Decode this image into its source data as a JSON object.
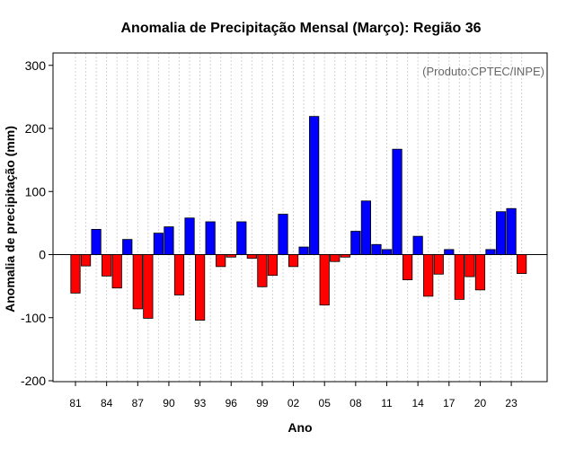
{
  "chart_data": {
    "type": "bar",
    "title": "Anomalia de Precipitação Mensal (Março): Região 36",
    "xlabel": "Ano",
    "ylabel": "Anomalia de precipitação (mm)",
    "annotation": "(Produto:CPTEC/INPE)",
    "ylim": [
      -200,
      320
    ],
    "yticks": [
      -200,
      -100,
      0,
      100,
      200,
      300
    ],
    "ytick_labels": [
      "-200",
      "-100",
      "0",
      "100",
      "200",
      "300"
    ],
    "categories": [
      "1981",
      "1982",
      "1983",
      "1984",
      "1985",
      "1986",
      "1987",
      "1988",
      "1989",
      "1990",
      "1991",
      "1992",
      "1993",
      "1994",
      "1995",
      "1996",
      "1997",
      "1998",
      "1999",
      "2000",
      "2001",
      "2002",
      "2003",
      "2004",
      "2005",
      "2006",
      "2007",
      "2008",
      "2009",
      "2010",
      "2011",
      "2012",
      "2013",
      "2014",
      "2015",
      "2016",
      "2017",
      "2018",
      "2019",
      "2020",
      "2021",
      "2022",
      "2023",
      "2024"
    ],
    "xtick_labels": [
      "81",
      "84",
      "87",
      "90",
      "93",
      "96",
      "99",
      "02",
      "05",
      "08",
      "11",
      "14",
      "17",
      "20",
      "23"
    ],
    "xtick_positions": [
      0,
      3,
      6,
      9,
      12,
      15,
      18,
      21,
      24,
      27,
      30,
      33,
      36,
      39,
      42
    ],
    "values": [
      -61,
      -18,
      40,
      -34,
      -53,
      24,
      -86,
      -101,
      34,
      44,
      -64,
      58,
      -104,
      52,
      -19,
      -4,
      52,
      -6,
      -51,
      -33,
      64,
      -19,
      12,
      219,
      -80,
      -11,
      -4,
      37,
      85,
      16,
      8,
      167,
      -40,
      29,
      -66,
      -31,
      8,
      -71,
      -35,
      -56,
      8,
      68,
      73,
      -30
    ],
    "grid": true,
    "colors": {
      "positive": "#0000ff",
      "negative": "#ff0000",
      "grid": "#d3d3d3",
      "annotation": "#666666"
    }
  }
}
